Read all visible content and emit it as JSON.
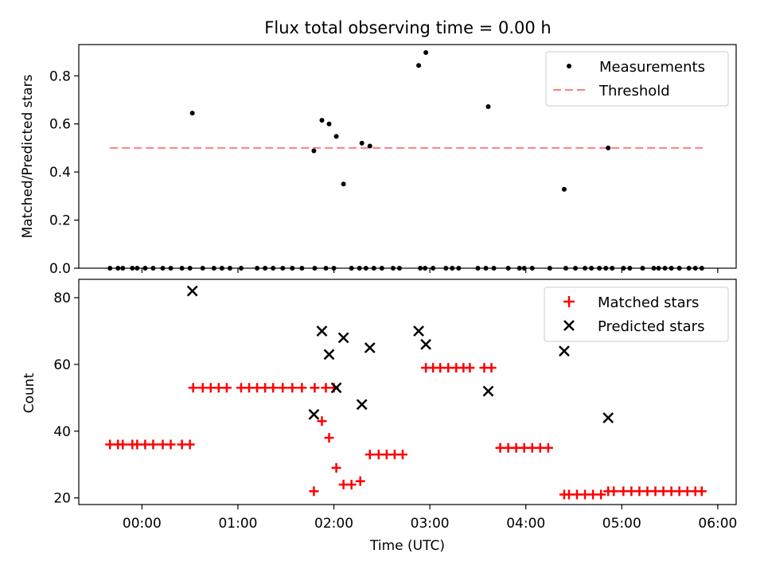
{
  "chart_data": {
    "type": "scatter",
    "title": "Flux total observing time = 0.00 h",
    "xlabel": "Time (UTC)",
    "x_ticks": [
      "00:00",
      "01:00",
      "02:00",
      "03:00",
      "04:00",
      "05:00",
      "06:00"
    ],
    "x_tick_minutes": [
      0,
      60,
      120,
      180,
      240,
      300,
      360
    ],
    "xlim_minutes": [
      -39.5,
      371.5
    ],
    "panels": [
      {
        "name": "ratio",
        "ylabel": "Matched/Predicted stars",
        "ylim": [
          0,
          0.93
        ],
        "y_ticks": [
          0.0,
          0.2,
          0.4,
          0.6,
          0.8
        ],
        "y_tick_labels": [
          "0.0",
          "0.2",
          "0.4",
          "0.6",
          "0.8"
        ],
        "legend": {
          "position": "top-right",
          "entries": [
            {
              "label": "Measurements",
              "marker": "dot",
              "color": "#000000"
            },
            {
              "label": "Threshold",
              "marker": "dashed-line",
              "color": "#ff7f7f"
            }
          ]
        },
        "threshold": {
          "y": 0.5,
          "x_start": -20,
          "x_end": 352,
          "color": "#ff7f7f"
        },
        "measurements": {
          "x": [
            -20,
            -15,
            -12,
            -6,
            -3,
            2,
            7,
            13,
            18,
            25,
            30,
            38,
            45,
            50,
            55,
            62,
            72,
            77,
            82,
            88,
            94,
            100,
            108,
            115,
            120,
            131,
            136,
            140,
            145,
            150,
            157,
            161,
            174,
            177,
            182,
            190,
            194,
            198,
            210,
            215,
            220,
            229,
            236,
            239,
            244,
            255,
            265,
            271,
            277,
            281,
            286,
            290,
            294,
            301,
            305,
            313,
            320,
            323,
            327,
            331,
            336,
            342,
            346,
            350
          ],
          "y": [
            0,
            0,
            0,
            0,
            0,
            0,
            0,
            0,
            0,
            0,
            0,
            0,
            0,
            0,
            0,
            0,
            0,
            0,
            0,
            0,
            0,
            0,
            0,
            0,
            0,
            0,
            0,
            0,
            0,
            0,
            0,
            0,
            0,
            0,
            0,
            0,
            0,
            0,
            0,
            0,
            0,
            0,
            0,
            0,
            0,
            0,
            0,
            0,
            0,
            0,
            0,
            0,
            0,
            0,
            0,
            0,
            0,
            0,
            0,
            0,
            0,
            0,
            0,
            0
          ]
        },
        "measurements_nonzero": {
          "x": [
            31.5,
            107.5,
            112.5,
            117,
            121.5,
            126,
            137.5,
            142.5,
            173,
            177.5,
            216.5,
            264,
            291.5
          ],
          "y": [
            0.645,
            0.488,
            0.615,
            0.6,
            0.548,
            0.35,
            0.52,
            0.508,
            0.843,
            0.897,
            0.672,
            0.328,
            0.5
          ]
        }
      },
      {
        "name": "counts",
        "ylabel": "Count",
        "ylim": [
          18,
          85.5
        ],
        "y_ticks": [
          20,
          40,
          60,
          80
        ],
        "y_tick_labels": [
          "20",
          "40",
          "60",
          "80"
        ],
        "legend": {
          "position": "top-right",
          "entries": [
            {
              "label": "Matched stars",
              "marker": "plus",
              "color": "#ff0000"
            },
            {
              "label": "Predicted stars",
              "marker": "x",
              "color": "#000000"
            }
          ]
        },
        "series": [
          {
            "name": "Matched stars",
            "color": "#ff0000",
            "x": [
              -20,
              -15,
              -12,
              -6,
              -3,
              2,
              7,
              13,
              18,
              25,
              30,
              32,
              38,
              43,
              48,
              53,
              62,
              67,
              72,
              77,
              82,
              88,
              94,
              100,
              108,
              115,
              120,
              107.5,
              112.5,
              117,
              121.5,
              126,
              131,
              136.5,
              142.5,
              148,
              153,
              158,
              163,
              177.5,
              182,
              186.5,
              191.5,
              196.5,
              201,
              205,
              214,
              218.5,
              224,
              229,
              234,
              239,
              244,
              249,
              254,
              264,
              267,
              272,
              277,
              282,
              287,
              291.5,
              295,
              301,
              306,
              311,
              316,
              321,
              326,
              331,
              336,
              341,
              346,
              350
            ],
            "y": [
              36,
              36,
              36,
              36,
              36,
              36,
              36,
              36,
              36,
              36,
              36,
              53,
              53,
              53,
              53,
              53,
              53,
              53,
              53,
              53,
              53,
              53,
              53,
              53,
              53,
              53,
              53,
              22,
              43,
              38,
              29,
              24,
              24,
              25,
              33,
              33,
              33,
              33,
              33,
              59,
              59,
              59,
              59,
              59,
              59,
              59,
              59,
              59,
              35,
              35,
              35,
              35,
              35,
              35,
              35,
              21,
              21,
              21,
              21,
              21,
              21,
              22,
              22,
              22,
              22,
              22,
              22,
              22,
              22,
              22,
              22,
              22,
              22,
              22
            ]
          },
          {
            "name": "Predicted stars",
            "color": "#000000",
            "x": [
              31.5,
              107.5,
              112.5,
              117,
              121.5,
              126,
              137.5,
              142.5,
              173,
              177.5,
              216.5,
              264,
              291.5
            ],
            "y": [
              82,
              45,
              70,
              63,
              53,
              68,
              48,
              65,
              70,
              66,
              52,
              64,
              44
            ]
          }
        ]
      }
    ]
  }
}
